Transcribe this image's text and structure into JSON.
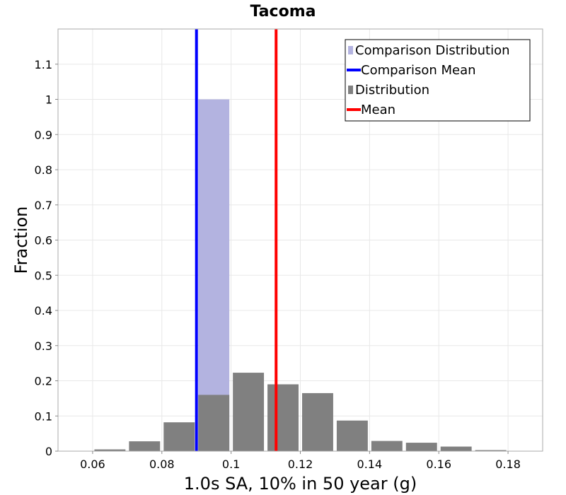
{
  "chart_data": {
    "type": "bar",
    "title": "Tacoma",
    "xlabel": "1.0s SA, 10% in 50 year (g)",
    "ylabel": "Fraction",
    "xlim": [
      0.05,
      0.19
    ],
    "ylim": [
      0,
      1.2
    ],
    "grid": true,
    "x_ticks": [
      "0.06",
      "0.08",
      "0.1",
      "0.12",
      "0.14",
      "0.16",
      "0.18"
    ],
    "y_ticks": [
      "0",
      "0.1",
      "0.2",
      "0.3",
      "0.4",
      "0.5",
      "0.6",
      "0.7",
      "0.8",
      "0.9",
      "1",
      "1.1"
    ],
    "bin_width": 0.01,
    "series": [
      {
        "name": "Comparison Distribution",
        "kind": "bar",
        "color": "#b3b3e0",
        "bins": [
          {
            "x": 0.095,
            "value": 1.0
          }
        ]
      },
      {
        "name": "Distribution",
        "kind": "bar",
        "color": "#808080",
        "bins": [
          {
            "x": 0.065,
            "value": 0.005
          },
          {
            "x": 0.075,
            "value": 0.028
          },
          {
            "x": 0.085,
            "value": 0.082
          },
          {
            "x": 0.095,
            "value": 0.16
          },
          {
            "x": 0.105,
            "value": 0.223
          },
          {
            "x": 0.115,
            "value": 0.19
          },
          {
            "x": 0.125,
            "value": 0.165
          },
          {
            "x": 0.135,
            "value": 0.087
          },
          {
            "x": 0.145,
            "value": 0.029
          },
          {
            "x": 0.155,
            "value": 0.024
          },
          {
            "x": 0.165,
            "value": 0.013
          },
          {
            "x": 0.175,
            "value": 0.003
          }
        ]
      }
    ],
    "vlines": [
      {
        "name": "Comparison Mean",
        "x": 0.09,
        "color": "#0000ff"
      },
      {
        "name": "Mean",
        "x": 0.113,
        "color": "#ff0000"
      }
    ],
    "legend": {
      "position": "top-right",
      "entries": [
        {
          "label": "Comparison Distribution",
          "color": "#b3b3e0",
          "marker": "square"
        },
        {
          "label": "Comparison Mean",
          "color": "#0000ff",
          "marker": "line"
        },
        {
          "label": "Distribution",
          "color": "#808080",
          "marker": "square"
        },
        {
          "label": "Mean",
          "color": "#ff0000",
          "marker": "line"
        }
      ]
    }
  }
}
